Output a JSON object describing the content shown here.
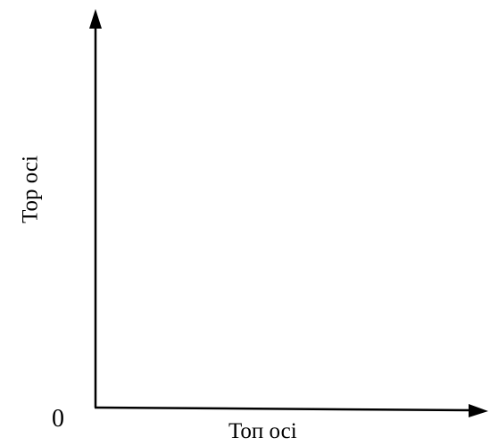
{
  "diagram": {
    "y_axis_label": "Тор осі",
    "x_axis_label": "Топ осі",
    "origin_label": "0",
    "line_color": "#000000"
  }
}
